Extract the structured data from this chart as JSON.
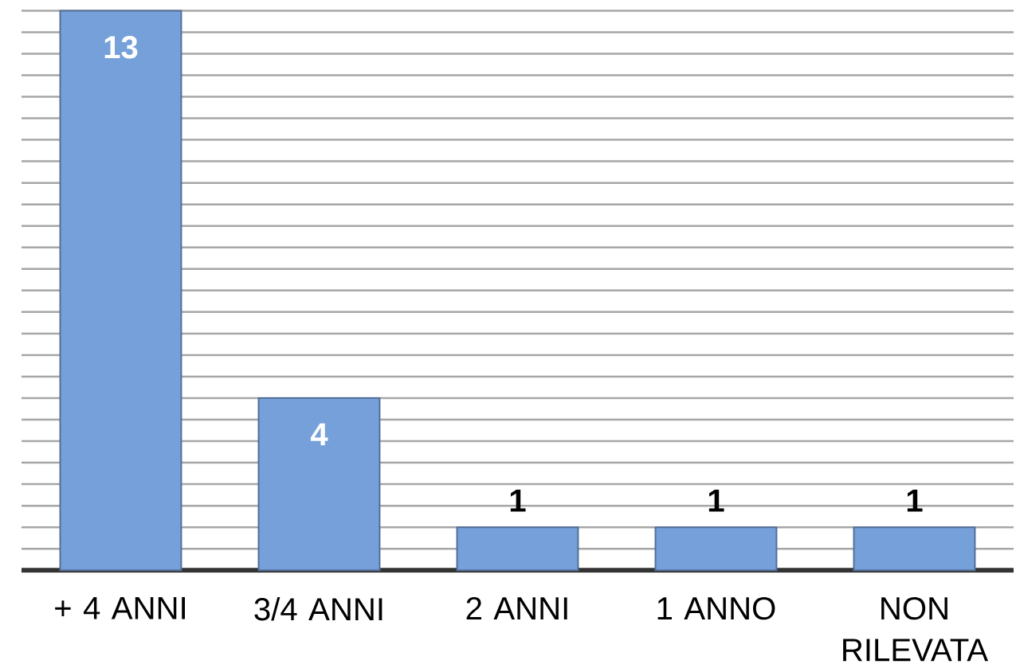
{
  "chart_data": {
    "type": "bar",
    "categories": [
      "+ 4 ANNI",
      "3/4 ANNI",
      "2 ANNI",
      "1 ANNO",
      "NON RILEVATA"
    ],
    "values": [
      13,
      4,
      1,
      1,
      1
    ],
    "color": "#76a0da",
    "grid": "y",
    "tick_labels": "x",
    "data_labels": true
  }
}
